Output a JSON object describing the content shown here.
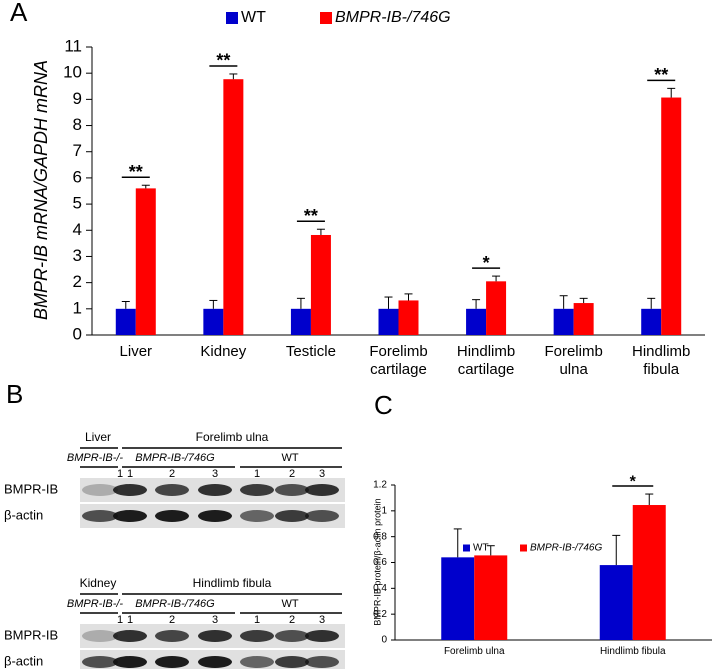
{
  "chart_data": [
    {
      "type": "bar",
      "panel_label": "A",
      "y_label": "BMPR-IB mRNA/GAPDH mRNA",
      "categories": [
        "Liver",
        "Kidney",
        "Testicle",
        "Forelimb cartilage",
        "Hindlimb cartilage",
        "Forelimb ulna",
        "Hindlimb fibula"
      ],
      "series": [
        {
          "name": "WT",
          "color": "#0000cc",
          "values": [
            1,
            1,
            1,
            1,
            1,
            1,
            1
          ],
          "errors": [
            0.28,
            0.32,
            0.4,
            0.45,
            0.35,
            0.5,
            0.4
          ]
        },
        {
          "name": "BMPR-IB-/746G",
          "color": "#ff0000",
          "values": [
            5.6,
            9.77,
            3.82,
            1.32,
            2.05,
            1.22,
            9.07
          ],
          "errors": [
            0.12,
            0.2,
            0.22,
            0.25,
            0.2,
            0.18,
            0.35
          ]
        }
      ],
      "significance": [
        "**",
        "**",
        "**",
        null,
        "*",
        null,
        "**"
      ],
      "ylim": [
        0,
        11
      ],
      "yticks": [
        0,
        1,
        2,
        3,
        4,
        5,
        6,
        7,
        8,
        9,
        10,
        11
      ],
      "grid": false
    },
    {
      "type": "bar",
      "panel_label": "C",
      "y_label": "BMPR-IB protein/β-actin protein",
      "categories": [
        "Forelimb ulna",
        "Hindlimb fibula"
      ],
      "series": [
        {
          "name": "WT",
          "color": "#0000cc",
          "values": [
            0.64,
            0.58
          ],
          "errors": [
            0.22,
            0.23
          ]
        },
        {
          "name": "BMPR-IB-/746G",
          "color": "#ff0000",
          "values": [
            0.655,
            1.045
          ],
          "errors": [
            0.075,
            0.085
          ]
        }
      ],
      "significance": [
        null,
        "*"
      ],
      "ylim": [
        0,
        1.2
      ],
      "yticks": [
        0,
        0.2,
        0.4,
        0.6,
        0.8,
        1,
        1.2
      ],
      "grid": false
    }
  ],
  "blot": {
    "panel_label": "B",
    "blots": [
      {
        "tissue": "Liver",
        "group": "Forelimb ulna",
        "genotypes": [
          "BMPR-IB-/-",
          "BMPR-IB-/746G",
          "WT"
        ],
        "lanes": [
          1,
          1,
          2,
          3,
          1,
          2,
          3
        ],
        "rows": [
          "BMPR-IB",
          "β-actin"
        ]
      },
      {
        "tissue": "Kidney",
        "group": "Hindlimb fibula",
        "genotypes": [
          "BMPR-IB-/-",
          "BMPR-IB-/746G",
          "WT"
        ],
        "lanes": [
          1,
          1,
          2,
          3,
          1,
          2,
          3
        ],
        "rows": [
          "BMPR-IB",
          "β-actin"
        ]
      }
    ]
  }
}
